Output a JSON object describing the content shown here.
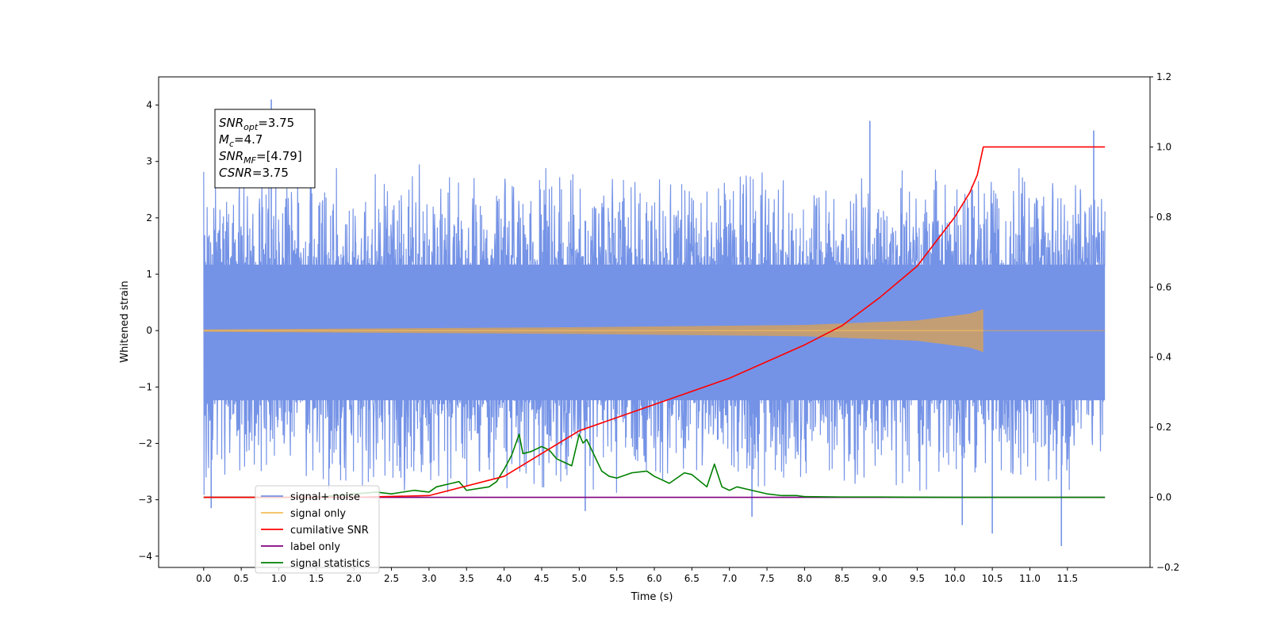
{
  "chart_data": {
    "type": "line",
    "xlabel": "Time (s)",
    "ylabel": "Whitened strain",
    "xlim": [
      -0.6,
      12.6
    ],
    "ylim": [
      -4.2,
      4.5
    ],
    "y2lim": [
      -0.2,
      1.2
    ],
    "x_ticks": [
      0.0,
      0.5,
      1.0,
      1.5,
      2.0,
      2.5,
      3.0,
      3.5,
      4.0,
      4.5,
      5.0,
      5.5,
      6.0,
      6.5,
      7.0,
      7.5,
      8.0,
      8.5,
      9.0,
      9.5,
      10.0,
      10.5,
      11.0,
      11.5
    ],
    "x_tick_labels": [
      "0.0",
      "0.5",
      "1.0",
      "1.5",
      "2.0",
      "2.5",
      "3.0",
      "3.5",
      "4.0",
      "4.5",
      "5.0",
      "5.5",
      "6.0",
      "6.5",
      "7.0",
      "7.5",
      "8.0",
      "8.5",
      "9.0",
      "9.5",
      "10.0",
      "10.5",
      "11.0",
      "11.5"
    ],
    "y_ticks": [
      -4,
      -3,
      -2,
      -1,
      0,
      1,
      2,
      3,
      4
    ],
    "y_tick_labels": [
      "−4",
      "−3",
      "−2",
      "−1",
      "0",
      "1",
      "2",
      "3",
      "4"
    ],
    "y2_ticks": [
      -0.2,
      0.0,
      0.2,
      0.4,
      0.6,
      0.8,
      1.0,
      1.2
    ],
    "y2_tick_labels": [
      "−0.2",
      "0.0",
      "0.2",
      "0.4",
      "0.6",
      "0.8",
      "1.0",
      "1.2"
    ],
    "grid": false,
    "legend_position": "bottom-left",
    "annotation": {
      "lines": [
        {
          "base": "SNR",
          "sub": "opt",
          "rest": "=3.75"
        },
        {
          "base": "M",
          "sub": "c",
          "rest": "=4.7"
        },
        {
          "base": "SNR",
          "sub": "MF",
          "rest": "=[4.79]"
        },
        {
          "base": "CSNR",
          "sub": "",
          "rest": "=3.75"
        }
      ]
    },
    "series": [
      {
        "name": "signal+ noise",
        "color": "#7593e6",
        "axis": "left",
        "kind": "noise",
        "x_range": [
          0.0,
          12.0
        ],
        "core_amplitude": 1.3,
        "peaks": [
          {
            "x": 0.9,
            "y": 4.1
          },
          {
            "x": 8.87,
            "y": 3.72
          },
          {
            "x": 11.85,
            "y": 3.55
          },
          {
            "x": 11.42,
            "y": -3.82
          },
          {
            "x": 10.5,
            "y": -3.6
          },
          {
            "x": 10.1,
            "y": -3.45
          },
          {
            "x": 7.3,
            "y": -3.3
          },
          {
            "x": 5.08,
            "y": -3.2
          },
          {
            "x": 0.1,
            "y": -3.15
          }
        ]
      },
      {
        "name": "signal only",
        "color": "#f5be5a",
        "axis": "left",
        "kind": "chirp",
        "x_range": [
          0.0,
          10.38
        ],
        "envelope": [
          [
            0.0,
            0.02
          ],
          [
            5.0,
            0.06
          ],
          [
            8.0,
            0.1
          ],
          [
            9.5,
            0.18
          ],
          [
            10.2,
            0.3
          ],
          [
            10.38,
            0.38
          ]
        ]
      },
      {
        "name": "cumilative SNR",
        "color": "#ff0000",
        "axis": "right",
        "x": [
          0.0,
          1.0,
          2.0,
          3.0,
          4.0,
          5.0,
          6.0,
          7.0,
          8.0,
          8.5,
          9.0,
          9.5,
          10.0,
          10.2,
          10.3,
          10.38,
          10.5,
          11.0,
          12.0
        ],
        "y": [
          0.0,
          0.0,
          0.0,
          0.005,
          0.06,
          0.19,
          0.265,
          0.34,
          0.435,
          0.49,
          0.57,
          0.66,
          0.8,
          0.87,
          0.92,
          1.0,
          1.0,
          1.0,
          1.0
        ]
      },
      {
        "name": "label only",
        "color": "#800080",
        "axis": "right",
        "x": [
          0.0,
          12.0
        ],
        "y": [
          0.0,
          0.0
        ]
      },
      {
        "name": "signal statistics",
        "color": "#008000",
        "axis": "right",
        "x": [
          0.0,
          1.5,
          2.0,
          2.3,
          2.5,
          2.8,
          3.0,
          3.1,
          3.3,
          3.4,
          3.5,
          3.8,
          3.9,
          4.0,
          4.1,
          4.2,
          4.25,
          4.35,
          4.5,
          4.6,
          4.7,
          4.8,
          4.9,
          5.0,
          5.05,
          5.1,
          5.2,
          5.3,
          5.4,
          5.5,
          5.7,
          5.9,
          6.0,
          6.1,
          6.2,
          6.4,
          6.5,
          6.7,
          6.8,
          6.9,
          7.0,
          7.1,
          7.3,
          7.5,
          7.7,
          7.9,
          8.0,
          8.5,
          9.0,
          10.0,
          12.0
        ],
        "y": [
          0.0,
          0.0,
          0.01,
          0.015,
          0.01,
          0.02,
          0.015,
          0.03,
          0.04,
          0.045,
          0.02,
          0.03,
          0.045,
          0.08,
          0.12,
          0.18,
          0.125,
          0.13,
          0.145,
          0.135,
          0.11,
          0.1,
          0.09,
          0.18,
          0.155,
          0.165,
          0.12,
          0.075,
          0.06,
          0.055,
          0.07,
          0.075,
          0.06,
          0.05,
          0.04,
          0.07,
          0.065,
          0.03,
          0.095,
          0.03,
          0.02,
          0.03,
          0.02,
          0.01,
          0.005,
          0.005,
          0.002,
          0.001,
          0.001,
          0.0,
          0.0
        ]
      }
    ]
  }
}
